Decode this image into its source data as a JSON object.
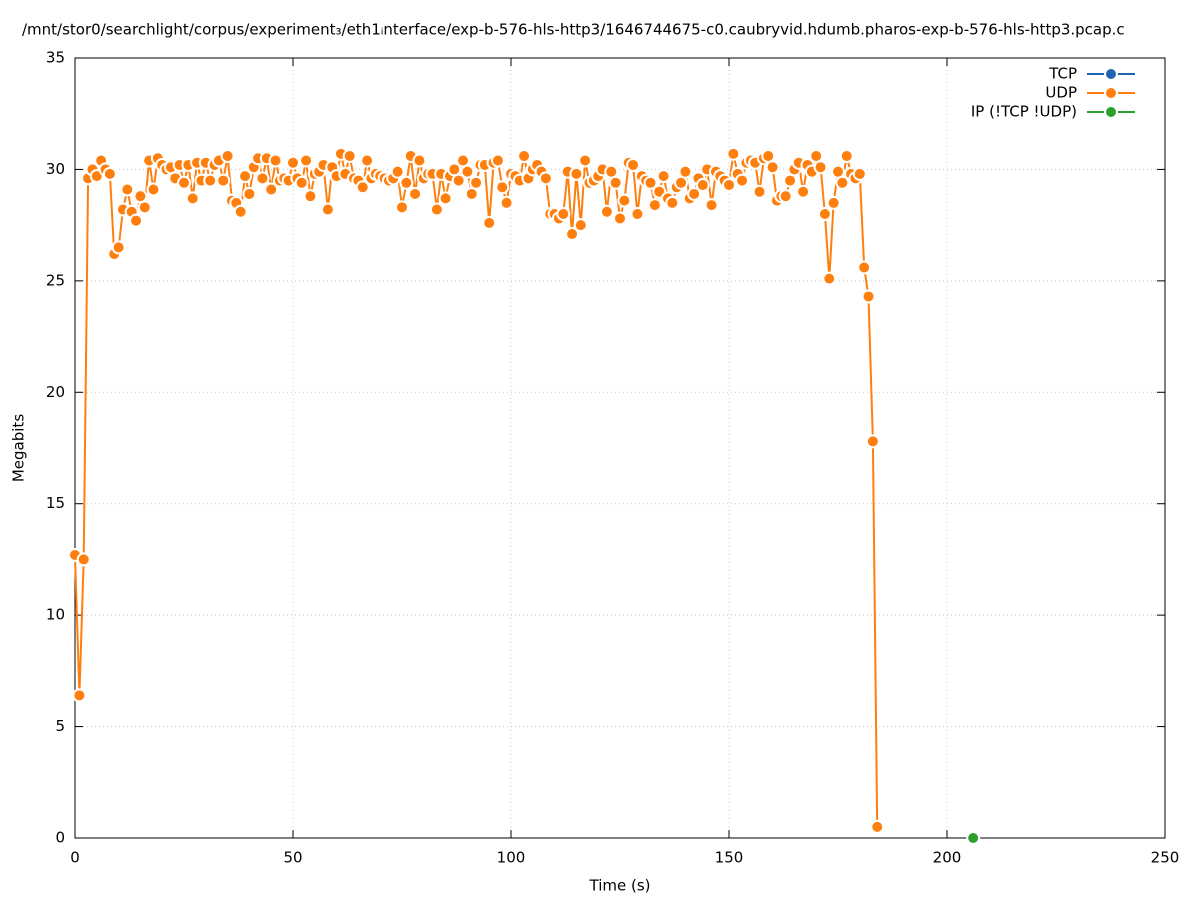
{
  "chart_data": {
    "type": "line",
    "title": "/mnt/stor0/searchlight/corpus/experiment₃/eth1ᵢnterface/exp-b-576-hls-http3/1646744675-c0.caubryvid.hdumb.pharos-exp-b-576-hls-http3.pcap.c",
    "xlabel": "Time (s)",
    "ylabel": "Megabits",
    "xlim": [
      0,
      250
    ],
    "xticks": [
      0,
      50,
      100,
      150,
      200,
      250
    ],
    "ylim": [
      0,
      35
    ],
    "yticks": [
      0,
      5,
      10,
      15,
      20,
      25,
      30,
      35
    ],
    "grid": true,
    "legend": "top-right",
    "series": [
      {
        "name": "TCP",
        "color": "#1f66b0",
        "x": [],
        "values": []
      },
      {
        "name": "UDP",
        "color": "#ff7f0e",
        "x": [
          0,
          1,
          2,
          3,
          4,
          5,
          6,
          7,
          8,
          9,
          10,
          11,
          12,
          13,
          14,
          15,
          16,
          17,
          18,
          19,
          20,
          21,
          22,
          23,
          24,
          25,
          26,
          27,
          28,
          29,
          30,
          31,
          32,
          33,
          34,
          35,
          36,
          37,
          38,
          39,
          40,
          41,
          42,
          43,
          44,
          45,
          46,
          47,
          48,
          49,
          50,
          51,
          52,
          53,
          54,
          55,
          56,
          57,
          58,
          59,
          60,
          61,
          62,
          63,
          64,
          65,
          66,
          67,
          68,
          69,
          70,
          71,
          72,
          73,
          74,
          75,
          76,
          77,
          78,
          79,
          80,
          81,
          82,
          83,
          84,
          85,
          86,
          87,
          88,
          89,
          90,
          91,
          92,
          93,
          94,
          95,
          96,
          97,
          98,
          99,
          100,
          101,
          102,
          103,
          104,
          105,
          106,
          107,
          108,
          109,
          110,
          111,
          112,
          113,
          114,
          115,
          116,
          117,
          118,
          119,
          120,
          121,
          122,
          123,
          124,
          125,
          126,
          127,
          128,
          129,
          130,
          131,
          132,
          133,
          134,
          135,
          136,
          137,
          138,
          139,
          140,
          141,
          142,
          143,
          144,
          145,
          146,
          147,
          148,
          149,
          150,
          151,
          152,
          153,
          154,
          155,
          156,
          157,
          158,
          159,
          160,
          161,
          162,
          163,
          164,
          165,
          166,
          167,
          168,
          169,
          170,
          171,
          172,
          173,
          174,
          175,
          176,
          177,
          178,
          179,
          180,
          181,
          182,
          183,
          184
        ],
        "values": [
          12.7,
          6.4,
          12.5,
          29.6,
          30.0,
          29.7,
          30.4,
          30.0,
          29.8,
          26.2,
          26.5,
          28.2,
          29.1,
          28.1,
          27.7,
          28.8,
          28.3,
          30.4,
          29.1,
          30.5,
          30.2,
          30.0,
          30.1,
          29.6,
          30.2,
          29.4,
          30.2,
          28.7,
          30.3,
          29.5,
          30.3,
          29.5,
          30.2,
          30.4,
          29.5,
          30.6,
          28.6,
          28.5,
          28.1,
          29.7,
          28.9,
          30.1,
          30.5,
          29.6,
          30.5,
          29.1,
          30.4,
          29.5,
          29.6,
          29.5,
          30.3,
          29.6,
          29.4,
          30.4,
          28.8,
          29.8,
          29.9,
          30.2,
          28.2,
          30.1,
          29.7,
          30.7,
          29.8,
          30.6,
          29.6,
          29.5,
          29.2,
          30.4,
          29.6,
          29.8,
          29.7,
          29.6,
          29.5,
          29.6,
          29.9,
          28.3,
          29.4,
          30.6,
          28.9,
          30.4,
          29.6,
          29.8,
          29.8,
          28.2,
          29.8,
          28.7,
          29.7,
          30.0,
          29.5,
          30.4,
          29.9,
          28.9,
          29.4,
          30.2,
          30.2,
          27.6,
          30.3,
          30.4,
          29.2,
          28.5,
          29.8,
          29.7,
          29.5,
          30.6,
          29.6,
          30.0,
          30.2,
          29.9,
          29.6,
          28.0,
          28.0,
          27.8,
          28.0,
          29.9,
          27.1,
          29.8,
          27.5,
          30.4,
          29.4,
          29.5,
          29.7,
          30.0,
          28.1,
          29.9,
          29.4,
          27.8,
          28.6,
          30.3,
          30.2,
          28.0,
          29.7,
          29.5,
          29.4,
          28.4,
          29.0,
          29.7,
          28.7,
          28.5,
          29.2,
          29.4,
          29.9,
          28.7,
          28.9,
          29.6,
          29.3,
          30.0,
          28.4,
          29.9,
          29.7,
          29.5,
          29.3,
          30.7,
          29.8,
          29.5,
          30.3,
          30.4,
          30.3,
          29.0,
          30.5,
          30.6,
          30.1,
          28.6,
          28.8,
          28.8,
          29.5,
          30.0,
          30.3,
          29.0,
          30.2,
          29.9,
          30.6,
          30.1,
          28.0,
          25.1,
          28.5,
          29.9,
          29.4,
          30.6,
          29.8,
          29.6,
          29.8,
          25.6,
          24.3,
          17.8,
          0.5
        ]
      },
      {
        "name": "IP (!TCP  !UDP)",
        "color": "#2ca02c",
        "x": [
          206
        ],
        "values": [
          0
        ]
      }
    ]
  }
}
